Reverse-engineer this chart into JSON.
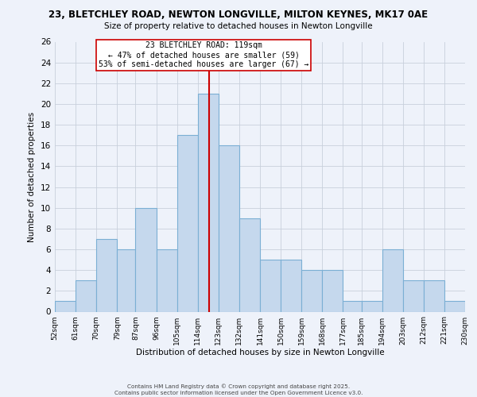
{
  "title1": "23, BLETCHLEY ROAD, NEWTON LONGVILLE, MILTON KEYNES, MK17 0AE",
  "title2": "Size of property relative to detached houses in Newton Longville",
  "xlabel": "Distribution of detached houses by size in Newton Longville",
  "ylabel": "Number of detached properties",
  "bin_edges": [
    52,
    61,
    70,
    79,
    87,
    96,
    105,
    114,
    123,
    132,
    141,
    150,
    159,
    168,
    177,
    185,
    194,
    203,
    212,
    221,
    230
  ],
  "counts": [
    1,
    3,
    7,
    6,
    10,
    6,
    17,
    21,
    16,
    9,
    5,
    5,
    4,
    4,
    1,
    1,
    6,
    3,
    3,
    1
  ],
  "bar_color": "#c5d8ed",
  "bar_edge_color": "#7bafd4",
  "property_line_x": 119,
  "property_line_color": "#cc0000",
  "annotation_title": "23 BLETCHLEY ROAD: 119sqm",
  "annotation_line1": "← 47% of detached houses are smaller (59)",
  "annotation_line2": "53% of semi-detached houses are larger (67) →",
  "annotation_box_color": "#ffffff",
  "annotation_box_edge_color": "#cc0000",
  "ylim": [
    0,
    26
  ],
  "yticks": [
    0,
    2,
    4,
    6,
    8,
    10,
    12,
    14,
    16,
    18,
    20,
    22,
    24,
    26
  ],
  "grid_color": "#c8d0dc",
  "background_color": "#eef2fa",
  "footer1": "Contains HM Land Registry data © Crown copyright and database right 2025.",
  "footer2": "Contains public sector information licensed under the Open Government Licence v3.0."
}
